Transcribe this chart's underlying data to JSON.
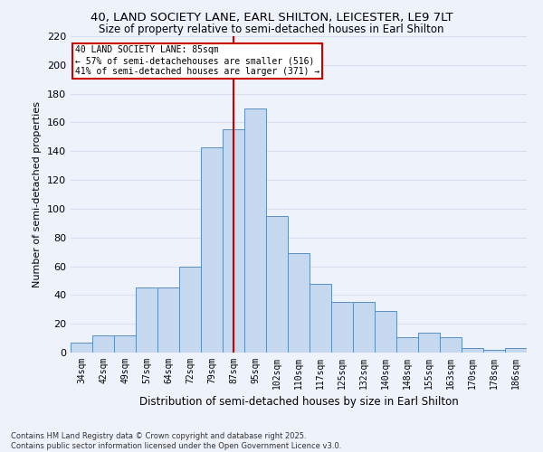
{
  "title1": "40, LAND SOCIETY LANE, EARL SHILTON, LEICESTER, LE9 7LT",
  "title2": "Size of property relative to semi-detached houses in Earl Shilton",
  "xlabel": "Distribution of semi-detached houses by size in Earl Shilton",
  "ylabel": "Number of semi-detached properties",
  "categories": [
    "34sqm",
    "42sqm",
    "49sqm",
    "57sqm",
    "64sqm",
    "72sqm",
    "79sqm",
    "87sqm",
    "95sqm",
    "102sqm",
    "110sqm",
    "117sqm",
    "125sqm",
    "132sqm",
    "140sqm",
    "148sqm",
    "155sqm",
    "163sqm",
    "170sqm",
    "178sqm",
    "186sqm"
  ],
  "values": [
    7,
    12,
    12,
    45,
    45,
    60,
    143,
    155,
    170,
    95,
    69,
    48,
    35,
    35,
    29,
    11,
    14,
    11,
    3,
    2,
    3
  ],
  "bar_color": "#c5d8f0",
  "bar_edge_color": "#5a8fc0",
  "vline_bin_index": 7,
  "vline_color": "#cc0000",
  "annotation_title": "40 LAND SOCIETY LANE: 85sqm",
  "annotation_line1": "← 57% of semi-detachehouses are smaller (516)",
  "annotation_line2": "41% of semi-detached houses are larger (371) →",
  "annotation_box_color": "#ffffff",
  "annotation_box_edge": "#cc0000",
  "ylim": [
    0,
    220
  ],
  "yticks": [
    0,
    20,
    40,
    60,
    80,
    100,
    120,
    140,
    160,
    180,
    200,
    220
  ],
  "background_color": "#eef2fa",
  "grid_color": "#d8dff0",
  "footnote1": "Contains HM Land Registry data © Crown copyright and database right 2025.",
  "footnote2": "Contains public sector information licensed under the Open Government Licence v3.0."
}
